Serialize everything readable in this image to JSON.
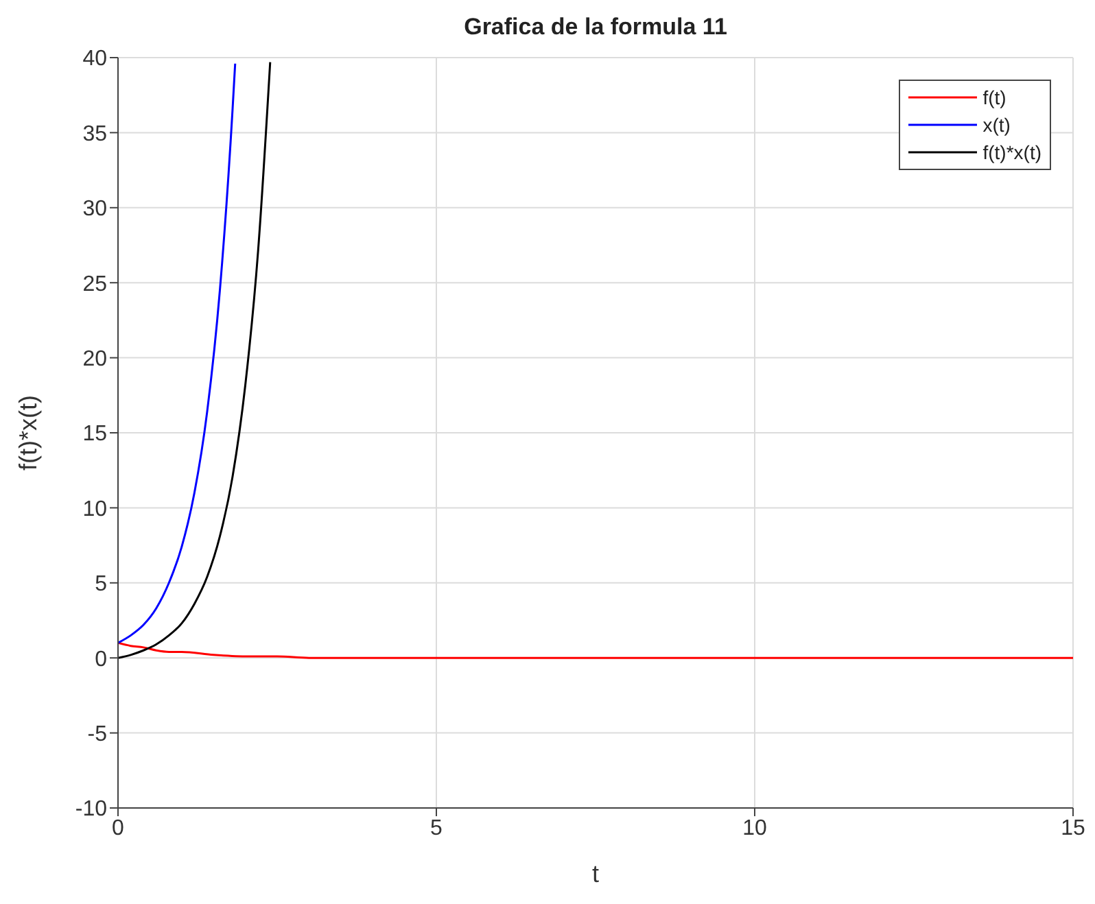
{
  "chart_data": {
    "type": "line",
    "title": "Grafica de la formula 11",
    "xlabel": "t",
    "ylabel": "f(t)*x(t)",
    "xlim": [
      0,
      15
    ],
    "xticks": [
      0,
      5,
      10,
      15
    ],
    "ylim": [
      -10,
      40
    ],
    "yticks": [
      -10,
      -5,
      0,
      5,
      10,
      15,
      20,
      25,
      30,
      35,
      40
    ],
    "grid": true,
    "legend": "top right",
    "marker": "none",
    "line_style": "solid",
    "series": [
      {
        "name": "f(t)",
        "color": "#ff0000",
        "x": [
          0,
          0.2,
          0.4,
          0.6,
          0.8,
          1,
          1.5,
          2,
          2.5,
          3,
          4,
          5,
          10,
          15
        ],
        "values": [
          1,
          0.8,
          0.7,
          0.5,
          0.4,
          0.4,
          0.2,
          0.1,
          0.1,
          0,
          0,
          0,
          0,
          0
        ]
      },
      {
        "name": "x(t)",
        "color": "#0000ff",
        "x": [
          0,
          0.2,
          0.4,
          0.6,
          0.8,
          1,
          1.2,
          1.4,
          1.6,
          1.8,
          1.84
        ],
        "values": [
          1,
          1.5,
          2.2,
          3.3,
          5,
          7.4,
          11,
          16.4,
          24.5,
          36.6,
          39.6
        ]
      },
      {
        "name": "f(t)*x(t)",
        "color": "#000000",
        "x": [
          0,
          0.2,
          0.4,
          0.6,
          0.8,
          1,
          1.2,
          1.4,
          1.6,
          1.8,
          2,
          2.2,
          2.39
        ],
        "values": [
          0,
          0.2,
          0.5,
          0.9,
          1.5,
          2.3,
          3.6,
          5.4,
          8.1,
          12.1,
          18.2,
          27.1,
          39.7
        ]
      }
    ]
  }
}
